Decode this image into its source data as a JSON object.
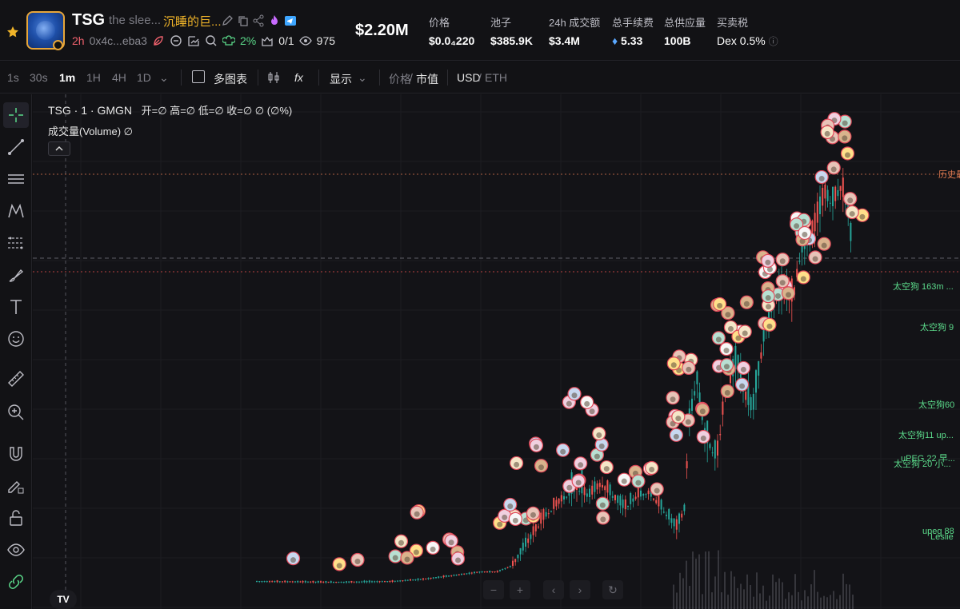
{
  "token": {
    "symbol": "TSG",
    "name": "the slee...",
    "chinese_name": "沉睡的巨...",
    "age": "2h",
    "address": "0x4c...eba3",
    "holder_pct": "2%",
    "snipers": "0/1",
    "views": "975",
    "market_cap": "$2.20M"
  },
  "stats": [
    {
      "label": "价格",
      "value": "$0.0₄220"
    },
    {
      "label": "池子",
      "value": "$385.9K"
    },
    {
      "label": "24h 成交额",
      "value": "$3.4M"
    },
    {
      "label": "总手续费",
      "value": "5.33"
    },
    {
      "label": "总供应量",
      "value": "100B"
    },
    {
      "label": "买卖税",
      "value": "Dex 0.5%"
    }
  ],
  "toolbar": {
    "intervals": [
      "1s",
      "30s",
      "1m",
      "1H",
      "4H",
      "1D"
    ],
    "active_interval": "1m",
    "multi_chart": "多图表",
    "display": "显示",
    "price_label": "价格",
    "mcap_label": "市值",
    "usd_label": "USD",
    "eth_label": "ETH"
  },
  "chart": {
    "legend_line": "TSG · 1 · GMGN",
    "ohlc": "开=∅  高=∅  低=∅  收=∅  ∅ (∅%)",
    "volume_label": "成交量(Volume)  ∅",
    "ath_label": "历史最",
    "right_labels": [
      "太空狗 163m ...",
      "太空狗 9",
      "太空狗60",
      "太空狗11 up...",
      "uPEG 22 早...",
      "太空狗 20 小...",
      "upeg 88",
      "Leslie"
    ],
    "colors": {
      "up": "#26a69a",
      "down": "#ef5350",
      "ath": "#e07a50",
      "accent": "#5bd98a"
    }
  }
}
